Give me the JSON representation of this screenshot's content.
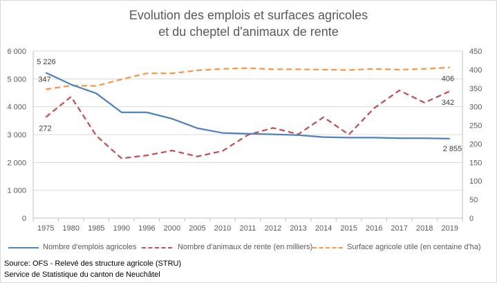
{
  "chart_data": {
    "type": "line",
    "title": [
      "Evolution des emplois et surfaces agricoles",
      "et du cheptel d'animaux de rente"
    ],
    "categories": [
      "1975",
      "1980",
      "1985",
      "1990",
      "1996",
      "2000",
      "2005",
      "2010",
      "2011",
      "2012",
      "2013",
      "2014",
      "2015",
      "2016",
      "2017",
      "2018",
      "2019"
    ],
    "y_left": {
      "min": 0,
      "max": 6000,
      "step": 1000,
      "ticks": [
        "0",
        "1 000",
        "2 000",
        "3 000",
        "4 000",
        "5 000",
        "6 000"
      ]
    },
    "y_right": {
      "min": 0,
      "max": 450,
      "step": 50,
      "ticks": [
        "0",
        "50",
        "100",
        "150",
        "200",
        "250",
        "300",
        "350",
        "400",
        "450"
      ]
    },
    "grid": true,
    "legend_position": "bottom",
    "series": [
      {
        "name": "Nombre d'emplois agricoles",
        "axis": "left",
        "style": "solid",
        "color": "#4f81bd",
        "values": [
          5226,
          4800,
          4480,
          3800,
          3800,
          3570,
          3230,
          3060,
          3030,
          3010,
          2980,
          2910,
          2890,
          2890,
          2870,
          2870,
          2855
        ]
      },
      {
        "name": "Nombre d'animaux de rente (en milliers)",
        "axis": "right",
        "style": "dash",
        "color": "#c0504d",
        "values": [
          272,
          327,
          222,
          161,
          169,
          182,
          166,
          181,
          224,
          243,
          226,
          272,
          225,
          296,
          344,
          311,
          342
        ]
      },
      {
        "name": "Surface agricole utile (en centaine d'ha)",
        "axis": "right",
        "style": "dash",
        "color": "#f79646",
        "values": [
          347,
          357,
          356,
          374,
          390,
          390,
          398,
          402,
          404,
          401,
          401,
          400,
          399,
          402,
          400,
          402,
          406
        ]
      }
    ],
    "data_labels": [
      {
        "series": 0,
        "index": 0,
        "text": "5 226"
      },
      {
        "series": 0,
        "index": 16,
        "text": "2 855"
      },
      {
        "series": 1,
        "index": 0,
        "text": "272"
      },
      {
        "series": 1,
        "index": 16,
        "text": "342"
      },
      {
        "series": 2,
        "index": 0,
        "text": "347"
      },
      {
        "series": 2,
        "index": 16,
        "text": "406"
      }
    ]
  },
  "source": {
    "line1": "Source: OFS - Relevé des structure agricole (STRU)",
    "line2": "Service de Statistique du canton de Neuchâtel"
  }
}
